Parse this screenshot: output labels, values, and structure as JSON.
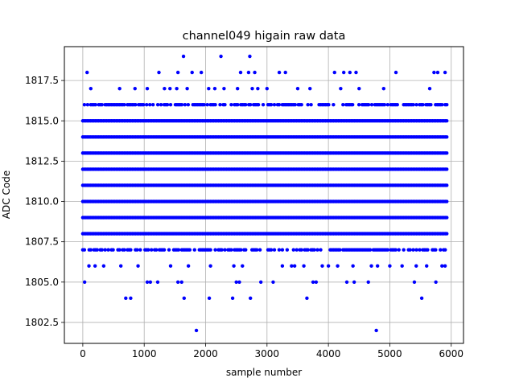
{
  "chart_data": {
    "type": "scatter",
    "title": "channel049 higain raw data",
    "xlabel": "sample number",
    "ylabel": "ADC Code",
    "xlim": [
      -300,
      6200
    ],
    "ylim": [
      1801.2,
      1819.6
    ],
    "xticks": [
      0,
      1000,
      2000,
      3000,
      4000,
      5000,
      6000
    ],
    "yticks": [
      1802.5,
      1805.0,
      1807.5,
      1810.0,
      1812.5,
      1815.0,
      1817.5
    ],
    "xtick_labels": [
      "0",
      "1000",
      "2000",
      "3000",
      "4000",
      "5000",
      "6000"
    ],
    "ytick_labels": [
      "1802.5",
      "1805.0",
      "1807.5",
      "1810.0",
      "1812.5",
      "1815.0",
      "1817.5"
    ],
    "grid": true,
    "marker_color": "#0000ff",
    "x_range": [
      0,
      5930
    ],
    "dense_levels": [
      1807,
      1808,
      1809,
      1810,
      1811,
      1812,
      1813,
      1814,
      1815,
      1816
    ],
    "sparse_points": [
      {
        "x": 30,
        "y": 1805
      },
      {
        "x": 70,
        "y": 1818
      },
      {
        "x": 130,
        "y": 1817
      },
      {
        "x": 100,
        "y": 1806
      },
      {
        "x": 200,
        "y": 1806
      },
      {
        "x": 340,
        "y": 1806
      },
      {
        "x": 600,
        "y": 1817
      },
      {
        "x": 620,
        "y": 1806
      },
      {
        "x": 700,
        "y": 1804
      },
      {
        "x": 780,
        "y": 1804
      },
      {
        "x": 850,
        "y": 1817
      },
      {
        "x": 900,
        "y": 1806
      },
      {
        "x": 1050,
        "y": 1817
      },
      {
        "x": 1050,
        "y": 1805
      },
      {
        "x": 1100,
        "y": 1805
      },
      {
        "x": 1240,
        "y": 1818
      },
      {
        "x": 1220,
        "y": 1805
      },
      {
        "x": 1330,
        "y": 1817
      },
      {
        "x": 1420,
        "y": 1817
      },
      {
        "x": 1430,
        "y": 1806
      },
      {
        "x": 1530,
        "y": 1817
      },
      {
        "x": 1550,
        "y": 1818
      },
      {
        "x": 1550,
        "y": 1805
      },
      {
        "x": 1610,
        "y": 1805
      },
      {
        "x": 1640,
        "y": 1819
      },
      {
        "x": 1650,
        "y": 1804
      },
      {
        "x": 1700,
        "y": 1817
      },
      {
        "x": 1720,
        "y": 1806
      },
      {
        "x": 1780,
        "y": 1818
      },
      {
        "x": 1850,
        "y": 1802
      },
      {
        "x": 1930,
        "y": 1818
      },
      {
        "x": 2050,
        "y": 1817
      },
      {
        "x": 2060,
        "y": 1804
      },
      {
        "x": 2080,
        "y": 1806
      },
      {
        "x": 2150,
        "y": 1817
      },
      {
        "x": 2250,
        "y": 1819
      },
      {
        "x": 2300,
        "y": 1817
      },
      {
        "x": 2440,
        "y": 1804
      },
      {
        "x": 2460,
        "y": 1806
      },
      {
        "x": 2500,
        "y": 1805
      },
      {
        "x": 2520,
        "y": 1817
      },
      {
        "x": 2550,
        "y": 1805
      },
      {
        "x": 2570,
        "y": 1818
      },
      {
        "x": 2600,
        "y": 1806
      },
      {
        "x": 2700,
        "y": 1818
      },
      {
        "x": 2720,
        "y": 1819
      },
      {
        "x": 2730,
        "y": 1804
      },
      {
        "x": 2760,
        "y": 1817
      },
      {
        "x": 2800,
        "y": 1818
      },
      {
        "x": 2850,
        "y": 1817
      },
      {
        "x": 2900,
        "y": 1805
      },
      {
        "x": 3000,
        "y": 1817
      },
      {
        "x": 3100,
        "y": 1805
      },
      {
        "x": 3200,
        "y": 1818
      },
      {
        "x": 3250,
        "y": 1806
      },
      {
        "x": 3300,
        "y": 1818
      },
      {
        "x": 3400,
        "y": 1806
      },
      {
        "x": 3450,
        "y": 1806
      },
      {
        "x": 3500,
        "y": 1817
      },
      {
        "x": 3600,
        "y": 1806
      },
      {
        "x": 3650,
        "y": 1804
      },
      {
        "x": 3700,
        "y": 1817
      },
      {
        "x": 3750,
        "y": 1805
      },
      {
        "x": 3800,
        "y": 1805
      },
      {
        "x": 3900,
        "y": 1806
      },
      {
        "x": 4000,
        "y": 1806
      },
      {
        "x": 4100,
        "y": 1818
      },
      {
        "x": 4150,
        "y": 1806
      },
      {
        "x": 4200,
        "y": 1817
      },
      {
        "x": 4250,
        "y": 1818
      },
      {
        "x": 4300,
        "y": 1805
      },
      {
        "x": 4350,
        "y": 1818
      },
      {
        "x": 4400,
        "y": 1806
      },
      {
        "x": 4420,
        "y": 1805
      },
      {
        "x": 4450,
        "y": 1818
      },
      {
        "x": 4500,
        "y": 1817
      },
      {
        "x": 4650,
        "y": 1805
      },
      {
        "x": 4700,
        "y": 1806
      },
      {
        "x": 4780,
        "y": 1802
      },
      {
        "x": 4800,
        "y": 1806
      },
      {
        "x": 4900,
        "y": 1817
      },
      {
        "x": 5000,
        "y": 1806
      },
      {
        "x": 5100,
        "y": 1818
      },
      {
        "x": 5200,
        "y": 1806
      },
      {
        "x": 5400,
        "y": 1805
      },
      {
        "x": 5430,
        "y": 1806
      },
      {
        "x": 5520,
        "y": 1804
      },
      {
        "x": 5600,
        "y": 1806
      },
      {
        "x": 5650,
        "y": 1817
      },
      {
        "x": 5720,
        "y": 1818
      },
      {
        "x": 5750,
        "y": 1805
      },
      {
        "x": 5780,
        "y": 1818
      },
      {
        "x": 5850,
        "y": 1806
      },
      {
        "x": 5900,
        "y": 1818
      },
      {
        "x": 5900,
        "y": 1806
      }
    ]
  }
}
